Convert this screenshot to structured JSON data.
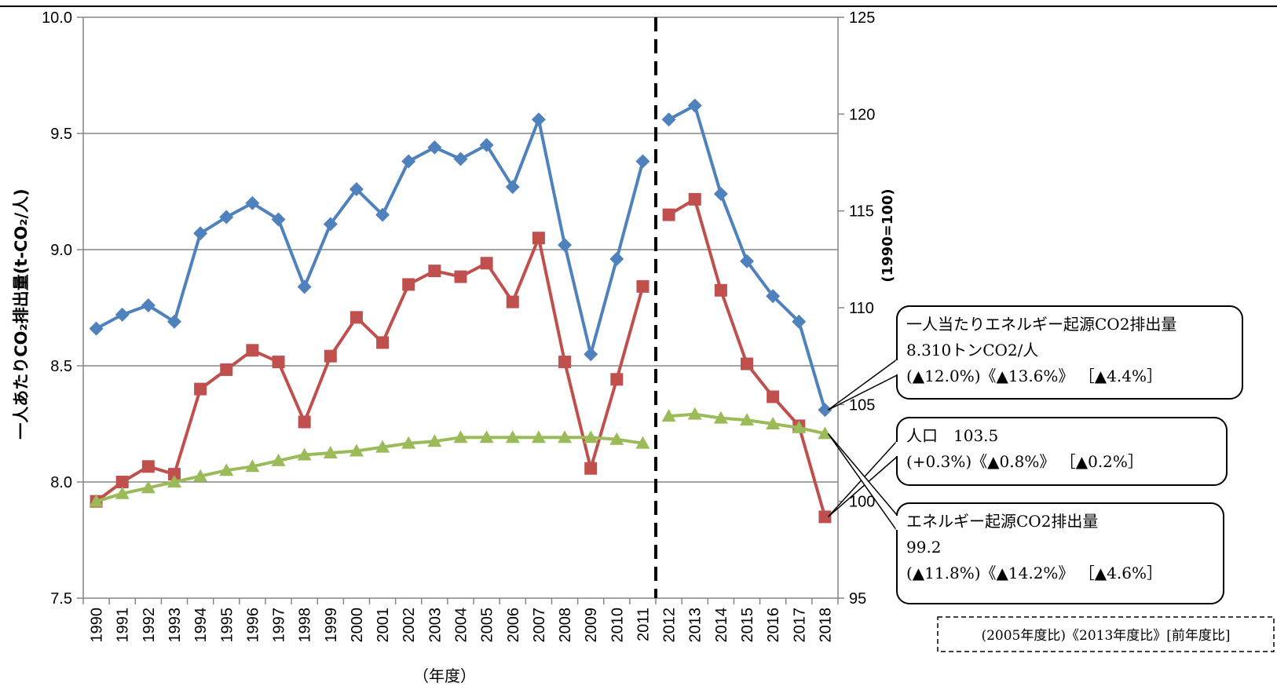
{
  "chart_data": {
    "type": "line",
    "title": "",
    "xlabel": "（年度）",
    "ylabel_left": "一人あたりCO₂排出量(t-CO₂/人)",
    "ylabel_right": "(1990=100)",
    "categories": [
      "1990",
      "1991",
      "1992",
      "1993",
      "1994",
      "1995",
      "1996",
      "1997",
      "1998",
      "1999",
      "2000",
      "2001",
      "2002",
      "2003",
      "2004",
      "2005",
      "2006",
      "2007",
      "2008",
      "2009",
      "2010",
      "2011",
      "2012",
      "2013",
      "2014",
      "2015",
      "2016",
      "2017",
      "2018"
    ],
    "ylim_left": [
      7.5,
      10.0
    ],
    "yticks_left": [
      "7.5",
      "8.0",
      "8.5",
      "9.0",
      "9.5",
      "10.0"
    ],
    "ylim_right": [
      95,
      125
    ],
    "yticks_right": [
      "95",
      "100",
      "105",
      "110",
      "115",
      "120",
      "125"
    ],
    "grid": true,
    "divider_after": "2011",
    "series": [
      {
        "axis": "left",
        "color": "#4F81BD",
        "marker": "diamond",
        "values": [
          8.66,
          8.72,
          8.76,
          8.69,
          9.07,
          9.14,
          9.2,
          9.13,
          8.84,
          9.11,
          9.26,
          9.15,
          9.38,
          9.44,
          9.39,
          9.45,
          9.27,
          9.56,
          9.02,
          8.55,
          8.96,
          9.38,
          9.56,
          9.62,
          9.24,
          8.95,
          8.8,
          8.69,
          8.31
        ]
      },
      {
        "axis": "right",
        "color": "#C0504D",
        "marker": "square",
        "values": [
          100.0,
          101.0,
          101.8,
          101.4,
          105.8,
          106.8,
          107.8,
          107.2,
          104.1,
          107.5,
          109.5,
          108.2,
          111.2,
          111.9,
          111.6,
          112.3,
          110.3,
          113.6,
          107.2,
          101.7,
          106.3,
          111.1,
          114.8,
          115.6,
          110.9,
          107.1,
          105.4,
          103.9,
          99.2
        ]
      },
      {
        "axis": "right",
        "color": "#9BBB59",
        "marker": "triangle",
        "values": [
          100.0,
          100.4,
          100.7,
          101.0,
          101.3,
          101.6,
          101.8,
          102.1,
          102.4,
          102.5,
          102.6,
          102.8,
          103.0,
          103.1,
          103.3,
          103.3,
          103.3,
          103.3,
          103.3,
          103.3,
          103.2,
          103.0,
          104.4,
          104.5,
          104.3,
          104.2,
          104.0,
          103.8,
          103.5
        ]
      }
    ],
    "annotations": [
      {
        "lines": [
          "一人当たりエネルギー起源CO2排出量",
          "8.310トンCO2/人",
          "(▲12.0%)《▲13.6%》 ［▲4.4%］"
        ]
      },
      {
        "lines": [
          "人口　103.5",
          "(+0.3%)《▲0.8%》 ［▲0.2%］"
        ]
      },
      {
        "lines": [
          "エネルギー起源CO2排出量",
          "99.2",
          "(▲11.8%)《▲14.2%》 ［▲4.6%］"
        ]
      }
    ],
    "legend_note": "(2005年度比)《2013年度比》[前年度比]"
  }
}
